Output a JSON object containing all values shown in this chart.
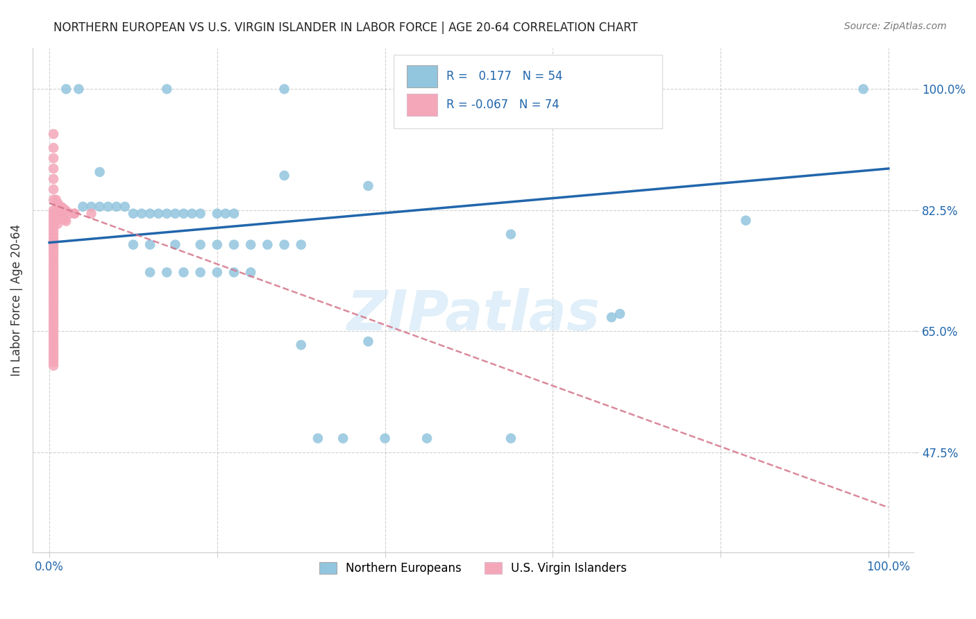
{
  "title": "NORTHERN EUROPEAN VS U.S. VIRGIN ISLANDER IN LABOR FORCE | AGE 20-64 CORRELATION CHART",
  "source": "Source: ZipAtlas.com",
  "ylabel": "In Labor Force | Age 20-64",
  "xlim": [
    -0.02,
    1.03
  ],
  "ylim": [
    0.33,
    1.06
  ],
  "yticks": [
    0.475,
    0.65,
    0.825,
    1.0
  ],
  "ytick_labels": [
    "47.5%",
    "65.0%",
    "82.5%",
    "100.0%"
  ],
  "xtick_labels": [
    "0.0%",
    "",
    "",
    "",
    "",
    "100.0%"
  ],
  "blue_color": "#92c5de",
  "pink_color": "#f4a7b9",
  "trend_blue_color": "#2166ac",
  "trend_pink_color": "#d4758a",
  "background_color": "#ffffff",
  "grid_color": "#cccccc",
  "title_color": "#222222",
  "axis_label_color": "#2166ac",
  "blue_x": [
    0.02,
    0.035,
    0.14,
    0.28,
    0.97,
    0.06,
    0.28,
    0.38,
    0.04,
    0.05,
    0.06,
    0.07,
    0.08,
    0.09,
    0.1,
    0.11,
    0.12,
    0.13,
    0.14,
    0.15,
    0.16,
    0.17,
    0.18,
    0.2,
    0.21,
    0.22,
    0.1,
    0.12,
    0.15,
    0.18,
    0.2,
    0.22,
    0.24,
    0.26,
    0.28,
    0.3,
    0.12,
    0.14,
    0.16,
    0.18,
    0.2,
    0.22,
    0.24,
    0.38,
    0.55,
    0.67,
    0.68,
    0.83,
    0.3,
    0.32,
    0.35,
    0.4,
    0.45,
    0.55
  ],
  "blue_y": [
    1.0,
    1.0,
    1.0,
    1.0,
    1.0,
    0.88,
    0.875,
    0.86,
    0.83,
    0.83,
    0.83,
    0.83,
    0.83,
    0.83,
    0.82,
    0.82,
    0.82,
    0.82,
    0.82,
    0.82,
    0.82,
    0.82,
    0.82,
    0.82,
    0.82,
    0.82,
    0.775,
    0.775,
    0.775,
    0.775,
    0.775,
    0.775,
    0.775,
    0.775,
    0.775,
    0.775,
    0.735,
    0.735,
    0.735,
    0.735,
    0.735,
    0.735,
    0.735,
    0.635,
    0.79,
    0.67,
    0.675,
    0.81,
    0.63,
    0.495,
    0.495,
    0.495,
    0.495,
    0.495
  ],
  "pink_x": [
    0.005,
    0.005,
    0.005,
    0.005,
    0.005,
    0.005,
    0.005,
    0.008,
    0.008,
    0.008,
    0.01,
    0.01,
    0.01,
    0.012,
    0.012,
    0.014,
    0.014,
    0.016,
    0.016,
    0.018,
    0.018,
    0.02,
    0.02,
    0.005,
    0.005,
    0.005,
    0.005,
    0.005,
    0.005,
    0.005,
    0.005,
    0.005,
    0.005,
    0.025,
    0.03,
    0.005,
    0.005,
    0.005,
    0.005,
    0.005,
    0.005,
    0.03,
    0.05,
    0.005,
    0.005,
    0.005,
    0.005,
    0.005,
    0.005,
    0.005,
    0.005,
    0.005,
    0.005,
    0.005,
    0.005,
    0.005,
    0.005,
    0.005,
    0.005,
    0.005,
    0.005,
    0.005,
    0.005,
    0.005,
    0.005,
    0.005,
    0.005,
    0.005,
    0.005,
    0.005,
    0.005,
    0.005,
    0.005
  ],
  "pink_y": [
    0.935,
    0.915,
    0.9,
    0.885,
    0.87,
    0.855,
    0.84,
    0.84,
    0.825,
    0.81,
    0.835,
    0.82,
    0.805,
    0.83,
    0.815,
    0.83,
    0.815,
    0.828,
    0.813,
    0.826,
    0.811,
    0.824,
    0.809,
    0.825,
    0.82,
    0.815,
    0.81,
    0.805,
    0.8,
    0.795,
    0.79,
    0.785,
    0.78,
    0.82,
    0.82,
    0.775,
    0.77,
    0.765,
    0.76,
    0.755,
    0.75,
    0.82,
    0.82,
    0.745,
    0.74,
    0.735,
    0.73,
    0.725,
    0.72,
    0.715,
    0.71,
    0.705,
    0.7,
    0.695,
    0.69,
    0.685,
    0.68,
    0.675,
    0.67,
    0.665,
    0.66,
    0.655,
    0.65,
    0.645,
    0.64,
    0.635,
    0.63,
    0.625,
    0.62,
    0.615,
    0.61,
    0.605,
    0.6
  ]
}
